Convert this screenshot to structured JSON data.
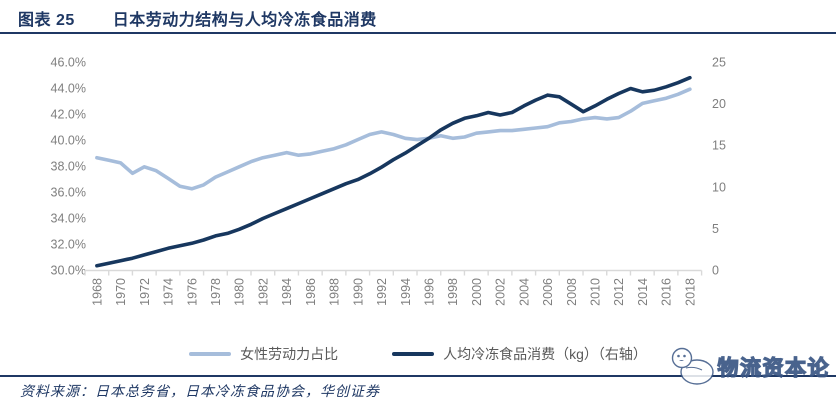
{
  "header": {
    "label": "图表 25",
    "title": "日本劳动力结构与人均冷冻食品消费"
  },
  "chart_data": {
    "type": "line",
    "x": [
      1968,
      1969,
      1970,
      1971,
      1972,
      1973,
      1974,
      1975,
      1976,
      1977,
      1978,
      1979,
      1980,
      1981,
      1982,
      1983,
      1984,
      1985,
      1986,
      1987,
      1988,
      1989,
      1990,
      1991,
      1992,
      1993,
      1994,
      1995,
      1996,
      1997,
      1998,
      1999,
      2000,
      2001,
      2002,
      2003,
      2004,
      2005,
      2006,
      2007,
      2008,
      2009,
      2010,
      2011,
      2012,
      2013,
      2014,
      2015,
      2016,
      2017,
      2018
    ],
    "series": [
      {
        "name": "女性劳动力占比",
        "axis": "left",
        "unit": "%",
        "color": "#A6BDDB",
        "values": [
          38.6,
          38.4,
          38.2,
          37.4,
          37.9,
          37.6,
          37.0,
          36.4,
          36.2,
          36.5,
          37.1,
          37.5,
          37.9,
          38.3,
          38.6,
          38.8,
          39.0,
          38.8,
          38.9,
          39.1,
          39.3,
          39.6,
          40.0,
          40.4,
          40.6,
          40.4,
          40.1,
          40.0,
          40.1,
          40.3,
          40.1,
          40.2,
          40.5,
          40.6,
          40.7,
          40.7,
          40.8,
          40.9,
          41.0,
          41.3,
          41.4,
          41.6,
          41.7,
          41.6,
          41.7,
          42.2,
          42.8,
          43.0,
          43.2,
          43.5,
          43.9
        ]
      },
      {
        "name": "人均冷冻食品消费（kg）（右轴）",
        "axis": "right",
        "unit": "kg",
        "color": "#17375E",
        "values": [
          0.4,
          0.7,
          1.0,
          1.3,
          1.7,
          2.1,
          2.5,
          2.8,
          3.1,
          3.5,
          4.0,
          4.3,
          4.8,
          5.4,
          6.1,
          6.7,
          7.3,
          7.9,
          8.5,
          9.1,
          9.7,
          10.3,
          10.8,
          11.5,
          12.3,
          13.2,
          14.0,
          14.9,
          15.8,
          16.8,
          17.6,
          18.2,
          18.5,
          18.9,
          18.6,
          18.9,
          19.7,
          20.4,
          21.0,
          20.8,
          19.9,
          19.0,
          19.7,
          20.5,
          21.2,
          21.8,
          21.4,
          21.6,
          22.0,
          22.5,
          23.1
        ]
      }
    ],
    "left_axis": {
      "min": 30,
      "max": 46,
      "ticks": [
        "46.0%",
        "44.0%",
        "42.0%",
        "40.0%",
        "38.0%",
        "36.0%",
        "34.0%",
        "32.0%",
        "30.0%"
      ]
    },
    "right_axis": {
      "min": 0,
      "max": 25,
      "ticks": [
        "25",
        "20",
        "15",
        "10",
        "5",
        "0"
      ]
    },
    "x_tick_labels": [
      "1968",
      "1970",
      "1972",
      "1974",
      "1976",
      "1978",
      "1980",
      "1982",
      "1984",
      "1986",
      "1988",
      "1990",
      "1992",
      "1994",
      "1996",
      "1998",
      "2000",
      "2002",
      "2004",
      "2006",
      "2008",
      "2010",
      "2012",
      "2014",
      "2016",
      "2018"
    ],
    "grid": false,
    "legend_position": "bottom"
  },
  "legend": {
    "items": [
      {
        "label": "女性劳动力占比",
        "color": "#A6BDDB"
      },
      {
        "label": "人均冷冻食品消费（kg）（右轴）",
        "color": "#17375E"
      }
    ]
  },
  "footer": {
    "source": "资料来源：日本总务省，日本冷冻食品协会，华创证券"
  },
  "watermark": {
    "text": "物流资本论"
  },
  "colors": {
    "accent": "#1F3864",
    "line_light": "#A6BDDB",
    "line_dark": "#17375E",
    "axis_text": "#7F7F7F",
    "axis_line": "#D9D9D9",
    "legend_text": "#595959"
  }
}
